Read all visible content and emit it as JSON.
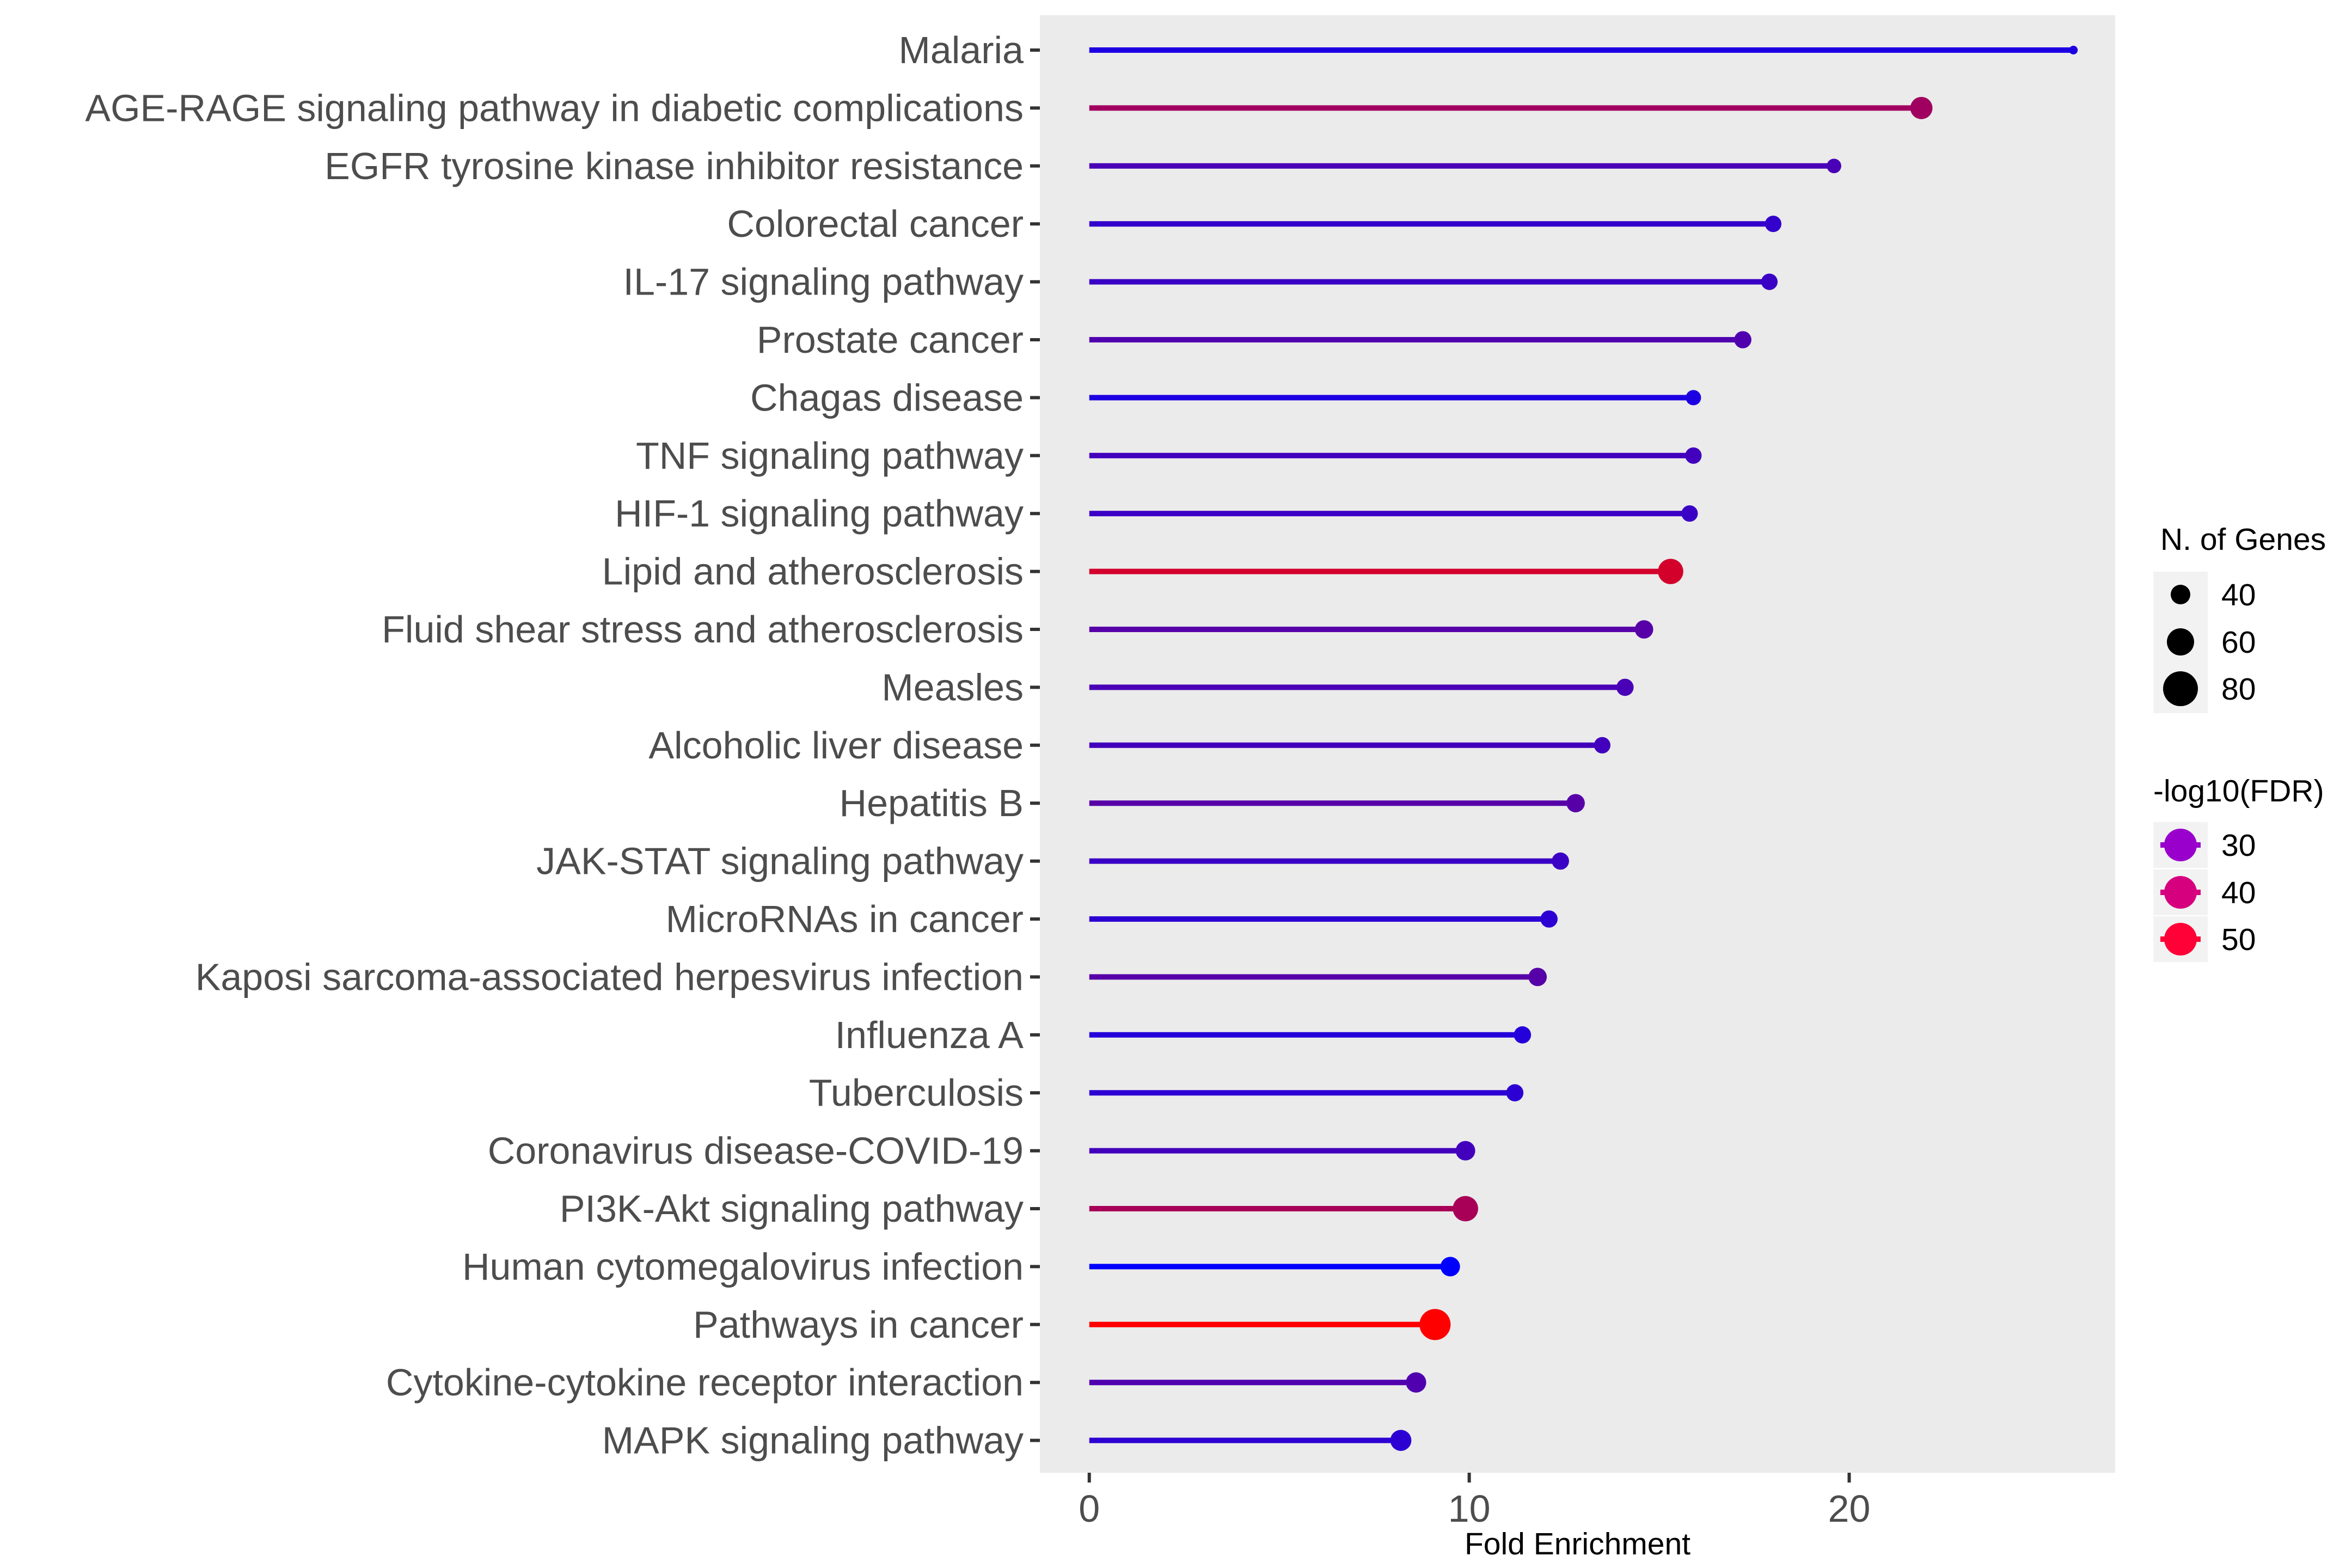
{
  "chart_data": {
    "type": "lollipop",
    "xlabel": "Fold Enrichment",
    "ylabel": "",
    "xlim": [
      -1.3,
      27
    ],
    "xticks": [
      0,
      10,
      20
    ],
    "grid": false,
    "background": "#ebebeb",
    "categories": [
      "Malaria",
      "AGE-RAGE signaling pathway in diabetic complications",
      "EGFR tyrosine kinase inhibitor resistance",
      "Colorectal cancer",
      "IL-17 signaling pathway",
      "Prostate cancer",
      "Chagas disease",
      "TNF signaling pathway",
      "HIF-1 signaling pathway",
      "Lipid and atherosclerosis",
      "Fluid shear stress and atherosclerosis",
      "Measles",
      "Alcoholic liver disease",
      "Hepatitis B",
      "JAK-STAT signaling pathway",
      "MicroRNAs in cancer",
      "Kaposi sarcoma-associated herpesvirus infection",
      "Influenza A",
      "Tuberculosis",
      "Coronavirus disease-COVID-19",
      "PI3K-Akt signaling pathway",
      "Human cytomegalovirus infection",
      "Pathways in cancer",
      "Cytokine-cytokine receptor interaction",
      "MAPK signaling pathway"
    ],
    "fold_enrichment": [
      25.9,
      21.9,
      19.6,
      18.0,
      17.9,
      17.2,
      15.9,
      15.9,
      15.8,
      15.3,
      14.6,
      14.1,
      13.5,
      12.8,
      12.4,
      12.1,
      11.8,
      11.4,
      11.2,
      9.9,
      9.9,
      9.5,
      9.1,
      8.6,
      8.2
    ],
    "n_genes": [
      20,
      55,
      35,
      40,
      40,
      42,
      37,
      40,
      40,
      63,
      45,
      42,
      40,
      45,
      42,
      42,
      45,
      42,
      42,
      48,
      63,
      48,
      78,
      50,
      52
    ],
    "neg_log10_fdr": [
      24,
      42,
      30,
      27,
      28,
      31,
      24,
      29,
      28,
      49,
      32,
      30,
      29,
      32,
      28,
      26,
      32,
      25,
      26,
      29,
      43,
      20,
      55,
      31,
      26
    ],
    "color_scale": {
      "low": "#0000ff",
      "high": "#ff0000"
    },
    "legend": {
      "placement": "right",
      "size": {
        "title": "N. of Genes",
        "values": [
          40,
          60,
          80
        ]
      },
      "color": {
        "title": "-log10(FDR)",
        "values": [
          30,
          40,
          50
        ],
        "colors": [
          "#9900cc",
          "#d6007f",
          "#ff0037"
        ]
      }
    }
  }
}
